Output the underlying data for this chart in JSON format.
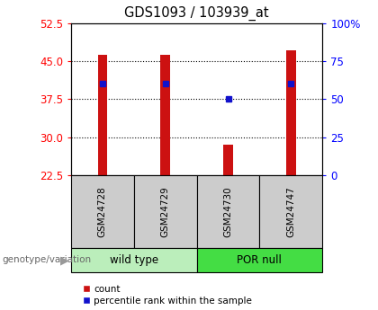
{
  "title": "GDS1093 / 103939_at",
  "samples": [
    "GSM24728",
    "GSM24729",
    "GSM24730",
    "GSM24747"
  ],
  "bar_values": [
    46.3,
    46.3,
    28.6,
    47.2
  ],
  "percentile_values": [
    40.5,
    40.5,
    37.5,
    40.5
  ],
  "y_min": 22.5,
  "y_max": 52.5,
  "y_ticks": [
    22.5,
    30,
    37.5,
    45,
    52.5
  ],
  "y_ticks_right": [
    0,
    25,
    50,
    75,
    100
  ],
  "bar_color": "#cc1111",
  "percentile_color": "#1111cc",
  "groups": [
    {
      "label": "wild type",
      "indices": [
        0,
        1
      ],
      "color": "#bbeebb"
    },
    {
      "label": "POR null",
      "indices": [
        2,
        3
      ],
      "color": "#44dd44"
    }
  ],
  "sample_box_color": "#cccccc",
  "bar_width": 0.15,
  "percentile_marker_size": 5,
  "legend_count_label": "count",
  "legend_percentile_label": "percentile rank within the sample",
  "genotype_label": "genotype/variation"
}
